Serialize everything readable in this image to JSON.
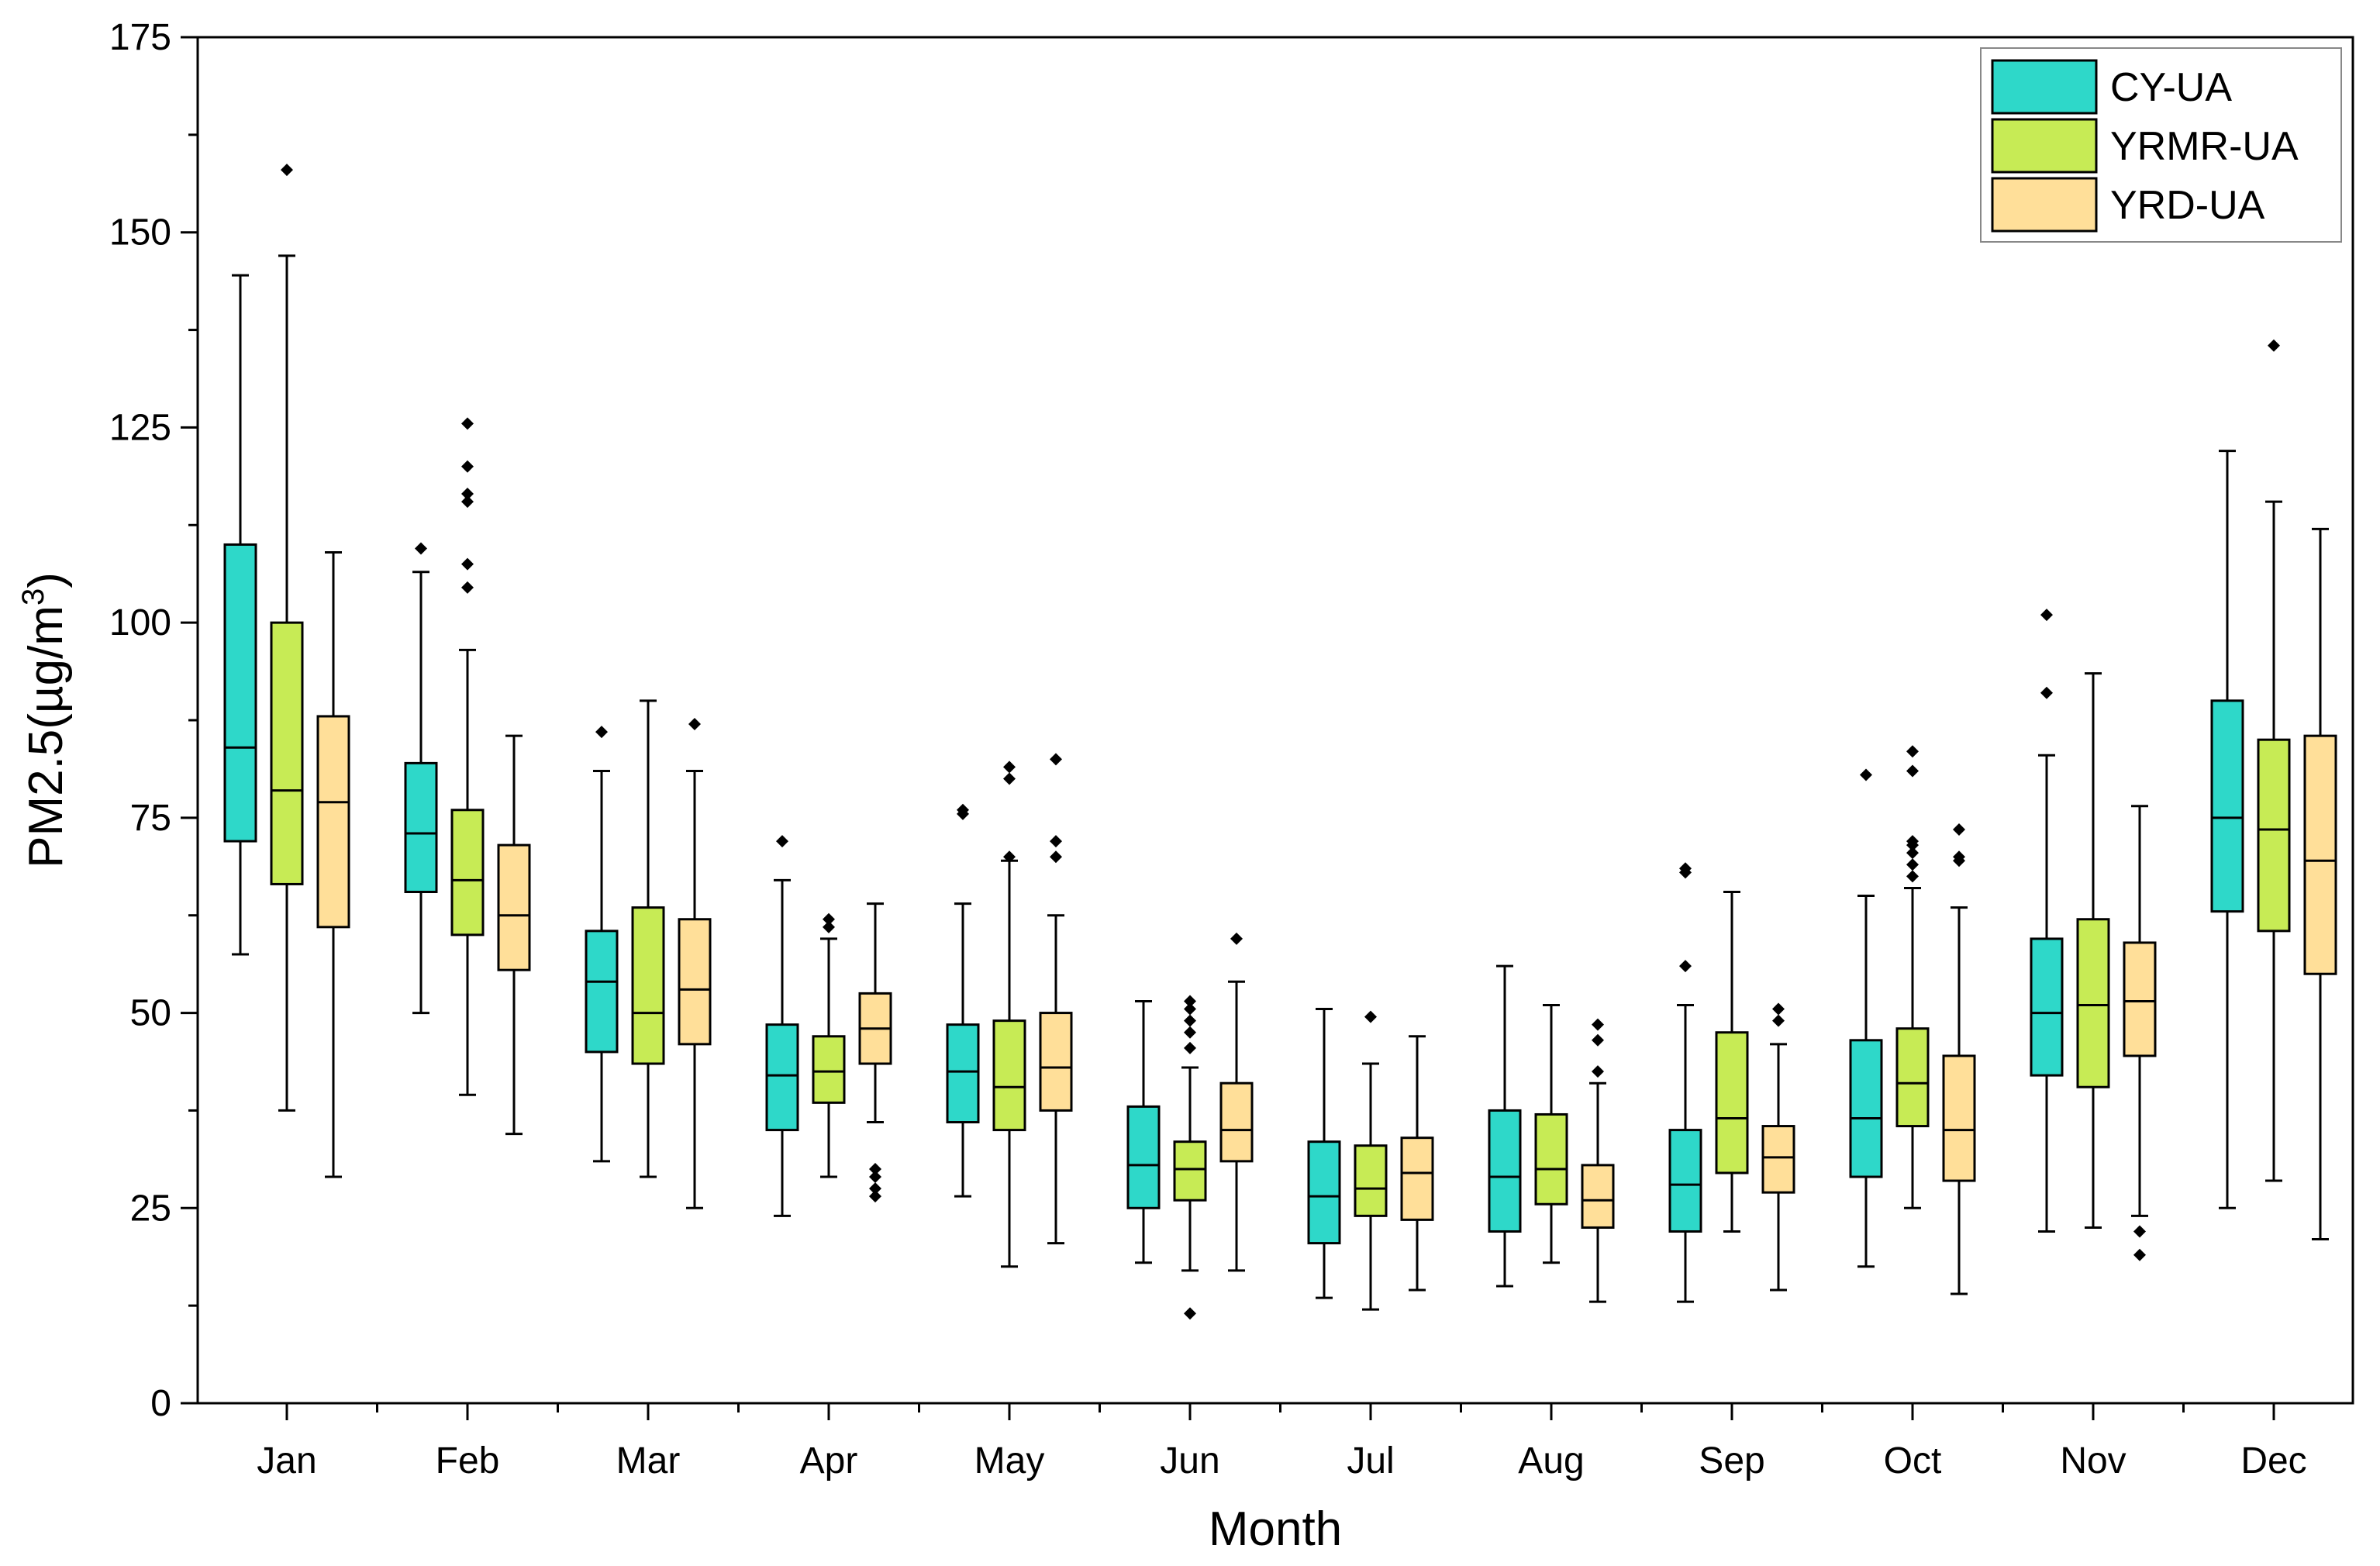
{
  "chart_data": {
    "type": "box",
    "title": "",
    "xlabel": "Month",
    "ylabel": "PM2.5(µg/m³)",
    "ylabel_parts": {
      "main": "PM2.5(µg/m",
      "sup": "3",
      "close": ")"
    },
    "ylim": [
      0,
      175
    ],
    "yticks": [
      0,
      25,
      50,
      75,
      100,
      125,
      150,
      175
    ],
    "categories": [
      "Jan",
      "Feb",
      "Mar",
      "Apr",
      "May",
      "Jun",
      "Jul",
      "Aug",
      "Sep",
      "Oct",
      "Nov",
      "Dec"
    ],
    "legend_position": "top-right",
    "series": [
      {
        "name": "CY-UA",
        "color": "#2ED8C9",
        "boxes": [
          {
            "min": 57.5,
            "q1": 72,
            "median": 84,
            "q3": 110,
            "max": 144.5,
            "outliers": []
          },
          {
            "min": 50,
            "q1": 65.5,
            "median": 73,
            "q3": 82,
            "max": 106.5,
            "outliers": [
              109.5
            ]
          },
          {
            "min": 31,
            "q1": 45,
            "median": 54,
            "q3": 60.5,
            "max": 81,
            "outliers": [
              86
            ]
          },
          {
            "min": 24,
            "q1": 35,
            "median": 42,
            "q3": 48.5,
            "max": 67,
            "outliers": [
              72
            ]
          },
          {
            "min": 26.5,
            "q1": 36,
            "median": 42.5,
            "q3": 48.5,
            "max": 64,
            "outliers": [
              75.5,
              76
            ]
          },
          {
            "min": 18,
            "q1": 25,
            "median": 30.5,
            "q3": 38,
            "max": 51.5,
            "outliers": []
          },
          {
            "min": 13.5,
            "q1": 20.5,
            "median": 26.5,
            "q3": 33.5,
            "max": 50.5,
            "outliers": []
          },
          {
            "min": 15,
            "q1": 22,
            "median": 29,
            "q3": 37.5,
            "max": 56,
            "outliers": []
          },
          {
            "min": 13,
            "q1": 22,
            "median": 28,
            "q3": 35,
            "max": 51,
            "outliers": [
              56,
              68,
              68.5
            ]
          },
          {
            "min": 17.5,
            "q1": 29,
            "median": 36.5,
            "q3": 46.5,
            "max": 65,
            "outliers": [
              80.5
            ]
          },
          {
            "min": 22,
            "q1": 42,
            "median": 50,
            "q3": 59.5,
            "max": 83,
            "outliers": [
              91,
              101
            ]
          },
          {
            "min": 25,
            "q1": 63,
            "median": 75,
            "q3": 90,
            "max": 122,
            "outliers": []
          }
        ]
      },
      {
        "name": "YRMR-UA",
        "color": "#C7EB55",
        "boxes": [
          {
            "min": 37.5,
            "q1": 66.5,
            "median": 78.5,
            "q3": 100,
            "max": 147,
            "outliers": [
              158
            ]
          },
          {
            "min": 39.5,
            "q1": 60,
            "median": 67,
            "q3": 76,
            "max": 96.5,
            "outliers": [
              104.5,
              107.5,
              115.5,
              116.5,
              120,
              125.5
            ]
          },
          {
            "min": 29,
            "q1": 43.5,
            "median": 50,
            "q3": 63.5,
            "max": 90,
            "outliers": []
          },
          {
            "min": 29,
            "q1": 38.5,
            "median": 42.5,
            "q3": 47,
            "max": 59.5,
            "outliers": [
              61,
              62
            ]
          },
          {
            "min": 17.5,
            "q1": 35,
            "median": 40.5,
            "q3": 49,
            "max": 69.5,
            "outliers": [
              70,
              80,
              81.5
            ]
          },
          {
            "min": 17,
            "q1": 26,
            "median": 30,
            "q3": 33.5,
            "max": 43,
            "outliers": [
              11.5,
              45.5,
              47.5,
              49,
              50.5,
              51.5
            ]
          },
          {
            "min": 12,
            "q1": 24,
            "median": 27.5,
            "q3": 33,
            "max": 43.5,
            "outliers": [
              49.5
            ]
          },
          {
            "min": 18,
            "q1": 25.5,
            "median": 30,
            "q3": 37,
            "max": 51,
            "outliers": []
          },
          {
            "min": 22,
            "q1": 29.5,
            "median": 36.5,
            "q3": 47.5,
            "max": 65.5,
            "outliers": []
          },
          {
            "min": 25,
            "q1": 35.5,
            "median": 41,
            "q3": 48,
            "max": 66,
            "outliers": [
              67.5,
              69,
              70.5,
              71.5,
              72,
              81,
              83.5
            ]
          },
          {
            "min": 22.5,
            "q1": 40.5,
            "median": 51,
            "q3": 62,
            "max": 93.5,
            "outliers": []
          },
          {
            "min": 28.5,
            "q1": 60.5,
            "median": 73.5,
            "q3": 85,
            "max": 115.5,
            "outliers": [
              135.5
            ]
          }
        ]
      },
      {
        "name": "YRD-UA",
        "color": "#FFDF99",
        "boxes": [
          {
            "min": 29,
            "q1": 61,
            "median": 77,
            "q3": 88,
            "max": 109,
            "outliers": []
          },
          {
            "min": 34.5,
            "q1": 55.5,
            "median": 62.5,
            "q3": 71.5,
            "max": 85.5,
            "outliers": []
          },
          {
            "min": 25,
            "q1": 46,
            "median": 53,
            "q3": 62,
            "max": 81,
            "outliers": [
              87
            ]
          },
          {
            "min": 36,
            "q1": 43.5,
            "median": 48,
            "q3": 52.5,
            "max": 64,
            "outliers": [
              26.5,
              27.5,
              29,
              30
            ]
          },
          {
            "min": 20.5,
            "q1": 37.5,
            "median": 43,
            "q3": 50,
            "max": 62.5,
            "outliers": [
              70,
              72,
              82.5
            ]
          },
          {
            "min": 17,
            "q1": 31,
            "median": 35,
            "q3": 41,
            "max": 54,
            "outliers": [
              59.5
            ]
          },
          {
            "min": 14.5,
            "q1": 23.5,
            "median": 29.5,
            "q3": 34,
            "max": 47,
            "outliers": []
          },
          {
            "min": 13,
            "q1": 22.5,
            "median": 26,
            "q3": 30.5,
            "max": 41,
            "outliers": [
              42.5,
              46.5,
              48.5
            ]
          },
          {
            "min": 14.5,
            "q1": 27,
            "median": 31.5,
            "q3": 35.5,
            "max": 46,
            "outliers": [
              49,
              50.5
            ]
          },
          {
            "min": 14,
            "q1": 28.5,
            "median": 35,
            "q3": 44.5,
            "max": 63.5,
            "outliers": [
              69.5,
              70,
              73.5
            ]
          },
          {
            "min": 24,
            "q1": 44.5,
            "median": 51.5,
            "q3": 59,
            "max": 76.5,
            "outliers": [
              19,
              22
            ]
          },
          {
            "min": 21,
            "q1": 55,
            "median": 69.5,
            "q3": 85.5,
            "max": 112,
            "outliers": []
          }
        ]
      }
    ]
  }
}
